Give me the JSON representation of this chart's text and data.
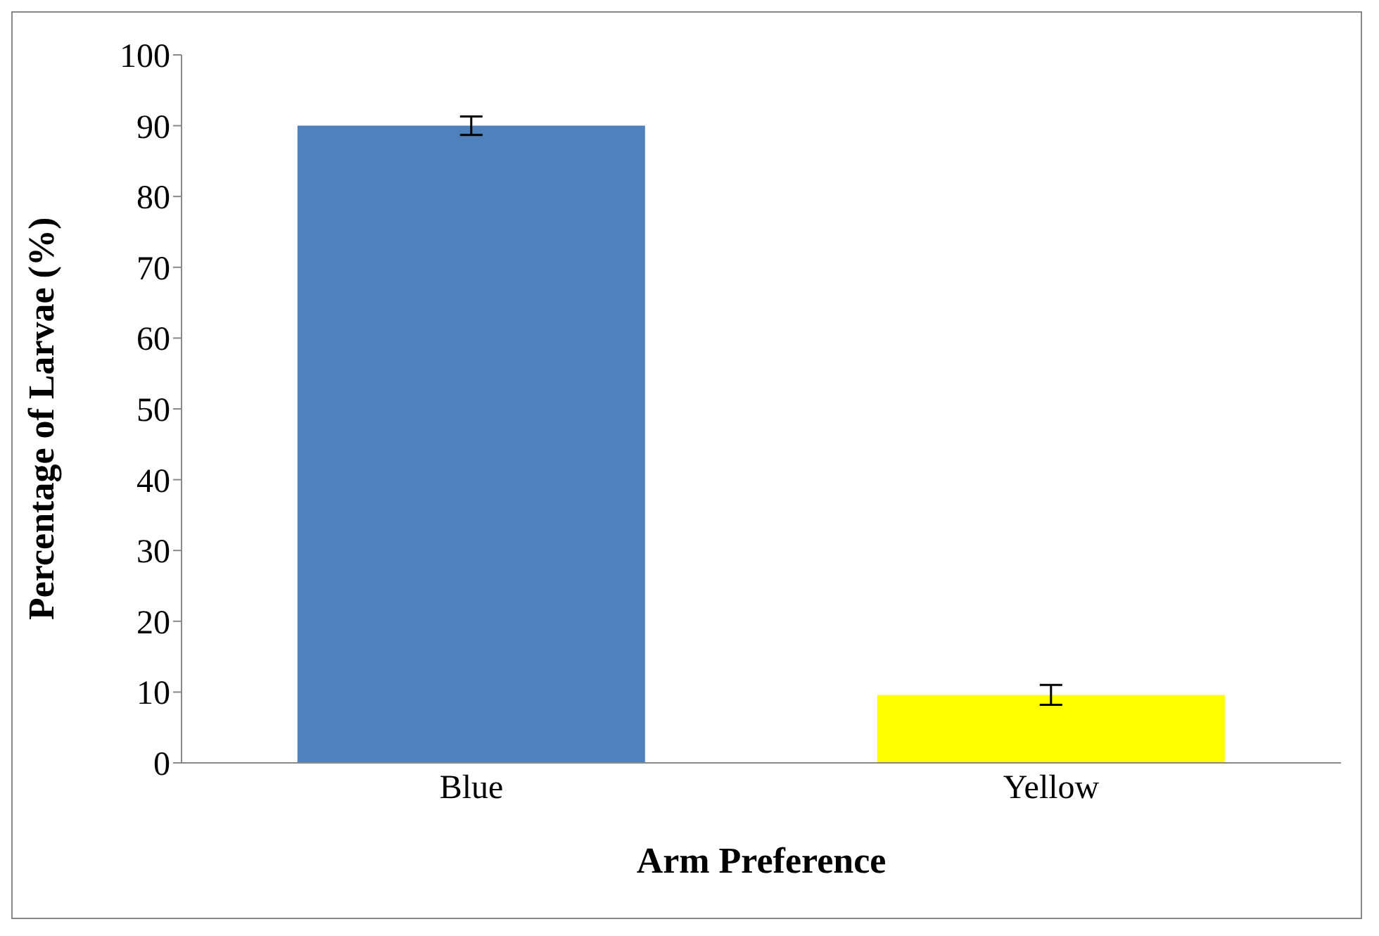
{
  "chart_data": {
    "type": "bar",
    "xlabel": "Arm Preference",
    "ylabel": "Percentage of Larvae (%)",
    "categories": [
      "Blue",
      "Yellow"
    ],
    "values": [
      90,
      9.6
    ],
    "colors": [
      "#4f81bd",
      "#ffff00"
    ],
    "errors": [
      1.3,
      1.4
    ],
    "ylim": [
      0,
      100
    ],
    "yticks": [
      0,
      10,
      20,
      30,
      40,
      50,
      60,
      70,
      80,
      90,
      100
    ],
    "grid": false,
    "legend": false
  }
}
